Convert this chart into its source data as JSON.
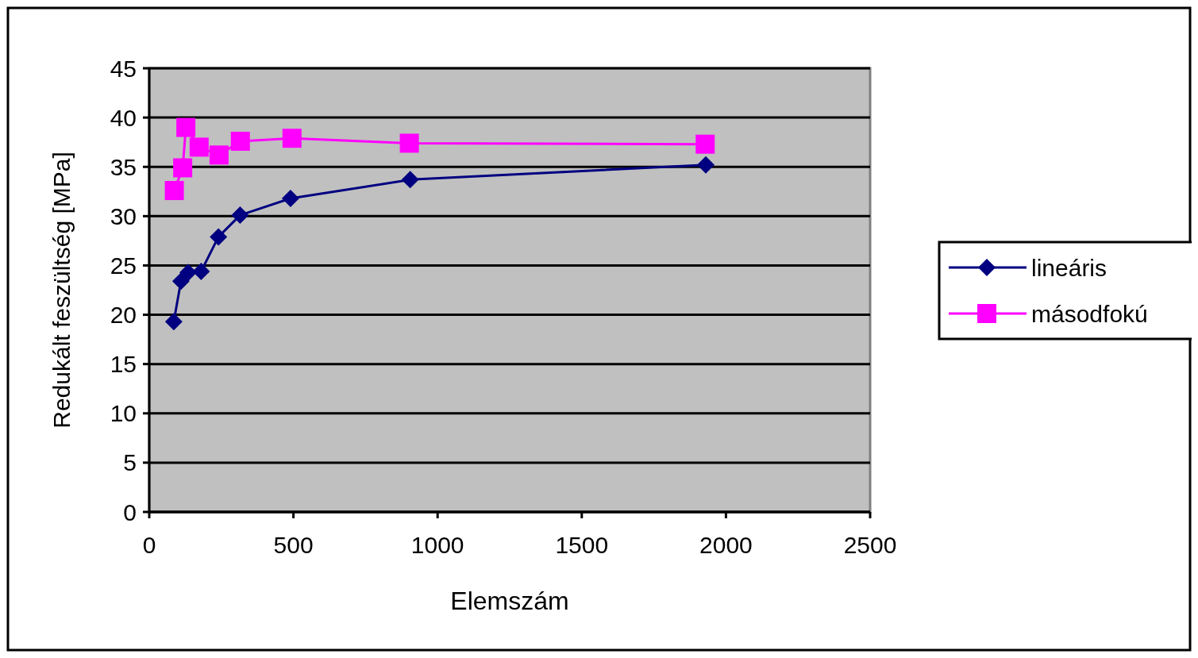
{
  "chart_data": {
    "type": "line",
    "xlabel": "Elemszám",
    "ylabel": "Redukált feszültség [MPa]",
    "xlim": [
      0,
      2500
    ],
    "xticks": [
      0,
      500,
      1000,
      1500,
      2000,
      2500
    ],
    "ylim": [
      0,
      45
    ],
    "yticks": [
      0,
      5,
      10,
      15,
      20,
      25,
      30,
      35,
      40,
      45
    ],
    "grid": "y",
    "legend": "right",
    "series": [
      {
        "name": "lineáris",
        "color": "#000080",
        "marker": "diamond",
        "x": [
          85,
          110,
          135,
          180,
          240,
          315,
          490,
          905,
          1930
        ],
        "values": [
          19.3,
          23.4,
          24.3,
          24.4,
          27.9,
          30.1,
          31.8,
          33.7,
          35.2
        ]
      },
      {
        "name": "másodfokú",
        "color": "#ff00ff",
        "marker": "square",
        "x": [
          87,
          116,
          127,
          173,
          242,
          316,
          495,
          902,
          1928
        ],
        "values": [
          32.6,
          34.9,
          39.0,
          37.0,
          36.2,
          37.6,
          37.9,
          37.4,
          37.3
        ]
      }
    ]
  }
}
